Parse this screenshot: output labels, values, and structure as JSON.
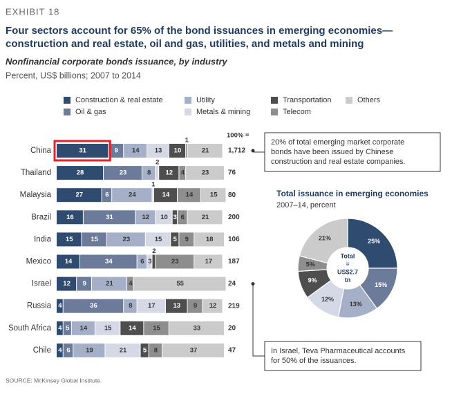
{
  "header": {
    "exhibit": "EXHIBIT 18",
    "title_lines": [
      "Four sectors account for 65% of the bond issuances in emerging economies—",
      "construction and real estate, oil and gas, utilities, and metals and mining"
    ],
    "subtitle": "Nonfinancial corporate bonds issuance, by industry",
    "units": "Percent, US$ billions; 2007 to 2014",
    "source": "SOURCE: McKinsey Global Institute."
  },
  "chart_data": [
    {
      "type": "bar",
      "orientation": "horizontal",
      "stacked": true,
      "categories": [
        "China",
        "Thailand",
        "Malaysia",
        "Brazil",
        "India",
        "Mexico",
        "Israel",
        "Russia",
        "South Africa",
        "Chile"
      ],
      "series": [
        {
          "name": "Construction & real estate",
          "color": "#2f4b70",
          "values": [
            31,
            28,
            27,
            16,
            15,
            14,
            12,
            4,
            4,
            4
          ]
        },
        {
          "name": "Oil & gas",
          "color": "#6d7b9b",
          "values": [
            9,
            23,
            6,
            31,
            15,
            34,
            9,
            36,
            5,
            6
          ]
        },
        {
          "name": "Utility",
          "color": "#a5afc8",
          "values": [
            14,
            8,
            24,
            12,
            23,
            6,
            21,
            8,
            14,
            19
          ]
        },
        {
          "name": "Metals & mining",
          "color": "#d5d9e5",
          "values": [
            13,
            2,
            1,
            10,
            15,
            3,
            null,
            17,
            15,
            21
          ]
        },
        {
          "name": "Transportation",
          "color": "#4e4e4e",
          "values": [
            10,
            12,
            14,
            3,
            5,
            2,
            null,
            13,
            14,
            5
          ]
        },
        {
          "name": "Telecom",
          "color": "#8e8e8e",
          "values": [
            1,
            4,
            14,
            6,
            9,
            23,
            4,
            9,
            15,
            8
          ]
        },
        {
          "name": "Others",
          "color": "#cbcbcb",
          "values": [
            21,
            23,
            15,
            21,
            18,
            17,
            55,
            12,
            33,
            37
          ]
        }
      ],
      "xlim": [
        0,
        100
      ],
      "totals": {
        "header": "100% =",
        "values": [
          1712,
          76,
          80,
          200,
          106,
          187,
          24,
          219,
          20,
          47
        ],
        "value_labels": [
          "1,712",
          "76",
          "80",
          "200",
          "106",
          "187",
          "24",
          "219",
          "20",
          "47"
        ]
      },
      "annotations": [
        {
          "category": 0,
          "lines": [
            "20% of total emerging market corporate",
            "bonds have been issued by Chinese",
            "construction and real estate companies."
          ]
        },
        {
          "category": 6,
          "lines": [
            "In Israel, Teva Pharmaceutical accounts",
            "for 50% of the issuances."
          ]
        }
      ],
      "highlight": {
        "category": 0,
        "series": 0,
        "color": "#e0242b"
      }
    },
    {
      "type": "pie",
      "title": "Total issuance in emerging economies",
      "subtitle": "2007–14, percent",
      "center_label": [
        "Total",
        "=",
        "US$2.7",
        "tn"
      ],
      "categories": [
        "Construction & real estate",
        "Oil & gas",
        "Utility",
        "Metals & mining",
        "Transportation",
        "Telecom",
        "Others"
      ],
      "colors": [
        "#2f4b70",
        "#6d7b9b",
        "#a5afc8",
        "#d5d9e5",
        "#4e4e4e",
        "#8e8e8e",
        "#cbcbcb"
      ],
      "values": [
        25,
        15,
        13,
        12,
        9,
        5,
        21
      ],
      "value_labels": [
        "25%",
        "15%",
        "13%",
        "12%",
        "9%",
        "5%",
        "21%"
      ]
    }
  ]
}
